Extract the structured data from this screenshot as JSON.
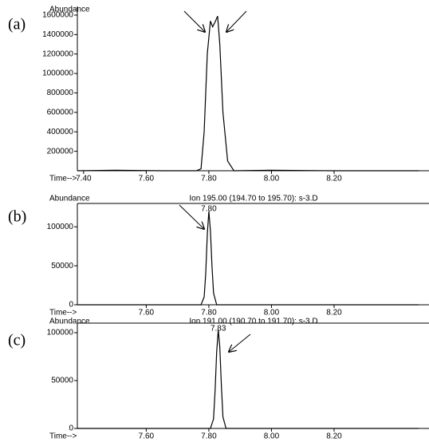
{
  "chart_data": [
    {
      "type": "line",
      "panel_label": "(a)",
      "ylabel": "Abundance",
      "xlabel": "Time-->",
      "color": "#000000",
      "x": [
        7.38,
        7.5,
        7.65,
        7.76,
        7.775,
        7.785,
        7.795,
        7.805,
        7.812,
        7.82,
        7.828,
        7.835,
        7.845,
        7.86,
        7.88,
        8.0,
        8.2,
        8.47
      ],
      "values": [
        0,
        5000,
        0,
        0,
        20000,
        400000,
        1200000,
        1540000,
        1480000,
        1530000,
        1590000,
        1300000,
        600000,
        100000,
        0,
        5000,
        0,
        0
      ],
      "xlim": [
        7.38,
        8.47
      ],
      "ylim": [
        0,
        1690000
      ],
      "xticks": [
        {
          "value": 7.4,
          "label": "7.40"
        },
        {
          "value": 7.6,
          "label": "7.60"
        },
        {
          "value": 7.8,
          "label": "7.80"
        },
        {
          "value": 8.0,
          "label": "8.00"
        },
        {
          "value": 8.2,
          "label": "8.20"
        }
      ],
      "yticks": [
        200000,
        400000,
        600000,
        800000,
        1000000,
        1200000,
        1400000,
        1600000
      ]
    },
    {
      "type": "line",
      "panel_label": "(b)",
      "title": "Ion 195.00 (194.70 to 195.70): s-3.D",
      "peak_label": "7.80",
      "ylabel": "Abundance",
      "xlabel": "Time-->",
      "color": "#000000",
      "x": [
        7.38,
        7.775,
        7.785,
        7.79,
        7.795,
        7.8,
        7.805,
        7.81,
        7.815,
        7.825,
        8.47
      ],
      "values": [
        0,
        0,
        10000,
        40000,
        90000,
        120000,
        95000,
        50000,
        15000,
        0,
        0
      ],
      "xlim": [
        7.38,
        8.47
      ],
      "ylim": [
        0,
        130000
      ],
      "xticks": [
        {
          "value": 7.6,
          "label": "7.60"
        },
        {
          "value": 7.8,
          "label": "7.80"
        },
        {
          "value": 8.0,
          "label": "8.00"
        },
        {
          "value": 8.2,
          "label": "8.20"
        }
      ],
      "yticks": [
        0,
        50000,
        100000
      ]
    },
    {
      "type": "line",
      "panel_label": "(c)",
      "title": "Ion 191.00 (190.70 to 191.70): s-3.D",
      "peak_label": "7.83",
      "ylabel": "Abundance",
      "xlabel": "Time-->",
      "color": "#000000",
      "x": [
        7.38,
        7.805,
        7.815,
        7.82,
        7.825,
        7.83,
        7.835,
        7.84,
        7.845,
        7.855,
        8.47
      ],
      "values": [
        0,
        0,
        10000,
        40000,
        80000,
        103000,
        85000,
        45000,
        12000,
        0,
        0
      ],
      "xlim": [
        7.38,
        8.47
      ],
      "ylim": [
        0,
        110000
      ],
      "xticks": [
        {
          "value": 7.6,
          "label": "7.60"
        },
        {
          "value": 7.8,
          "label": "7.80"
        },
        {
          "value": 8.0,
          "label": "8.00"
        },
        {
          "value": 8.2,
          "label": "8.20"
        }
      ],
      "yticks": [
        0,
        50000,
        100000
      ]
    }
  ]
}
